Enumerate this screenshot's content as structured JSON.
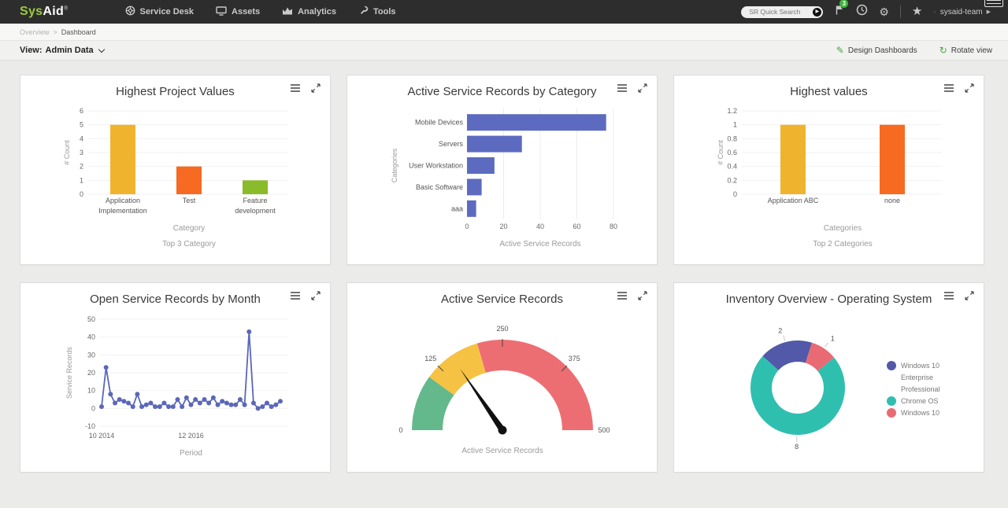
{
  "topbar": {
    "logo_sys": "Sys",
    "logo_aid": "Aid",
    "logo_reg": "®",
    "menu": [
      {
        "label": "Service Desk",
        "icon": "lifebuoy-icon"
      },
      {
        "label": "Assets",
        "icon": "monitor-icon"
      },
      {
        "label": "Analytics",
        "icon": "area-chart-icon"
      },
      {
        "label": "Tools",
        "icon": "wrench-icon"
      }
    ],
    "search_placeholder": "SR Quick Search",
    "notification_badge": "3",
    "user_bullet": "·",
    "user_name": "sysaid-team",
    "colors": {
      "bar_bg": "#2d2d2d",
      "logo_green": "#9bcb3c",
      "badge_green": "#3cb53c"
    }
  },
  "breadcrumb": {
    "parent": "Overview",
    "separator": ">",
    "current": "Dashboard"
  },
  "viewbar": {
    "label": "View:",
    "value": "Admin Data",
    "design_label": "Design Dashboards",
    "rotate_label": "Rotate view",
    "accent_green": "#47a53f"
  },
  "chart_data": [
    {
      "type": "bar",
      "title": "Highest Project Values",
      "categories": [
        [
          "Application",
          "Implementation"
        ],
        [
          "Test"
        ],
        [
          "Feature",
          "development"
        ]
      ],
      "values": [
        5,
        2,
        1
      ],
      "colors": [
        "#F0B32E",
        "#F76A21",
        "#8ABB2A"
      ],
      "ylim": [
        0,
        6
      ],
      "yticks": [
        0,
        1,
        2,
        3,
        4,
        5,
        6
      ],
      "ylabel": "# Count",
      "xlabel": "Category",
      "subtitle": "Top 3 Category"
    },
    {
      "type": "hbar",
      "title": "Active Service Records by Category",
      "categories": [
        "Mobile Devices",
        "Servers",
        "User Workstation",
        "Basic Software",
        "aaa"
      ],
      "values": [
        76,
        30,
        15,
        8,
        5
      ],
      "color": "#5C6BC0",
      "xlim": [
        0,
        80
      ],
      "xticks": [
        0,
        20,
        40,
        60,
        80
      ],
      "ylabel": "Categories",
      "xlabel": "Active Service Records"
    },
    {
      "type": "bar",
      "title": "Highest values",
      "categories": [
        [
          "Application ABC"
        ],
        [
          "none"
        ]
      ],
      "values": [
        1,
        1
      ],
      "colors": [
        "#F0B32E",
        "#F76A21"
      ],
      "ylim": [
        0,
        1.2
      ],
      "yticks": [
        0,
        0.2,
        0.4,
        0.6,
        0.8,
        1,
        1.2
      ],
      "ylabel": "# Count",
      "xlabel": "Categories",
      "subtitle": "Top 2 Categories"
    },
    {
      "type": "line",
      "title": "Open Service Records by Month",
      "values": [
        1,
        23,
        8,
        3,
        5,
        4,
        3,
        1,
        8,
        1,
        2,
        3,
        1,
        1,
        3,
        1,
        1,
        5,
        1,
        6,
        2,
        5,
        3,
        5,
        3,
        6,
        2,
        4,
        3,
        2,
        2,
        5,
        2,
        43,
        3,
        0,
        1,
        3,
        1,
        2,
        4
      ],
      "color": "#5B67B8",
      "ylim": [
        -10,
        50
      ],
      "yticks": [
        -10,
        0,
        10,
        20,
        30,
        40,
        50
      ],
      "ylabel": "Service Records",
      "xlabel": "Period",
      "xticks": [
        {
          "label": "10 2014",
          "frac": 0
        },
        {
          "label": "12 2016",
          "frac": 0.5
        }
      ]
    },
    {
      "type": "gauge",
      "title": "Active Service Records",
      "min": 0,
      "max": 500,
      "value": 154,
      "ticks": [
        0,
        125,
        250,
        375,
        500
      ],
      "bands": [
        {
          "from": 0,
          "to": 100,
          "color": "#63B98B"
        },
        {
          "from": 100,
          "to": 205,
          "color": "#F6C244"
        },
        {
          "from": 205,
          "to": 500,
          "color": "#ED6E72"
        }
      ],
      "label": "Active Service Records"
    },
    {
      "type": "donut",
      "title": "Inventory Overview - Operating System",
      "start_angle": -48,
      "slices": [
        {
          "label": "Windows 10 Enterprise Professional",
          "value": 2,
          "color": "#5159A8",
          "legend_lines": [
            "Windows 10",
            "Enterprise",
            "Professional"
          ]
        },
        {
          "label": "Windows 10",
          "value": 1,
          "color": "#E96A73",
          "legend_lines": [
            "Windows 10"
          ]
        },
        {
          "label": "Chrome OS",
          "value": 8,
          "color": "#2FBFAF",
          "legend_lines": [
            "Chrome OS"
          ]
        }
      ],
      "legend_order": [
        0,
        2,
        1
      ]
    }
  ]
}
